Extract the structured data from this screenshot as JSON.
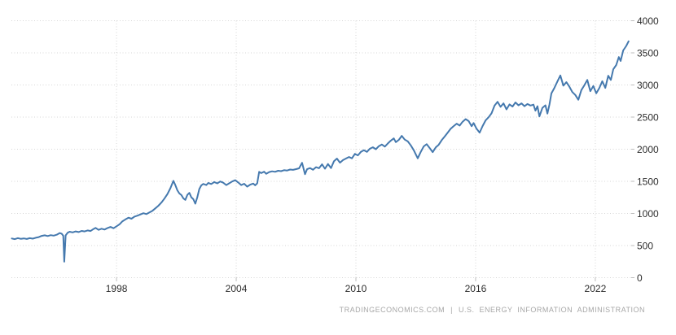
{
  "chart": {
    "footer": {
      "left": "TRADINGECONOMICS.COM",
      "separator": "|",
      "right": "U.S. ENERGY INFORMATION ADMINISTRATION"
    }
  },
  "chart_data": {
    "type": "line",
    "title": "",
    "xlabel": "",
    "ylabel": "",
    "legend": "none",
    "grid": "dotted",
    "xlim": [
      1992.73,
      2023.8
    ],
    "ylim": [
      0,
      4000
    ],
    "xticks": [
      1998,
      2004,
      2010,
      2016,
      2022
    ],
    "yticks": [
      0,
      500,
      1000,
      1500,
      2000,
      2500,
      3000,
      3500,
      4000
    ],
    "colors": {
      "line": "#4579ae",
      "grid": "#d6d6d6",
      "tick": "#bdbdbd",
      "axis_label": "#2d2d2d",
      "footer": "#a7a7a7",
      "background": "#ffffff"
    },
    "series": [
      {
        "color": "#4579ae",
        "points": [
          [
            1992.75,
            610
          ],
          [
            1992.9,
            600
          ],
          [
            1993.05,
            615
          ],
          [
            1993.2,
            605
          ],
          [
            1993.35,
            612
          ],
          [
            1993.5,
            602
          ],
          [
            1993.65,
            615
          ],
          [
            1993.8,
            608
          ],
          [
            1993.95,
            622
          ],
          [
            1994.1,
            632
          ],
          [
            1994.25,
            650
          ],
          [
            1994.4,
            660
          ],
          [
            1994.55,
            648
          ],
          [
            1994.7,
            662
          ],
          [
            1994.85,
            654
          ],
          [
            1995.0,
            668
          ],
          [
            1995.15,
            695
          ],
          [
            1995.25,
            685
          ],
          [
            1995.33,
            652
          ],
          [
            1995.38,
            250
          ],
          [
            1995.45,
            658
          ],
          [
            1995.55,
            700
          ],
          [
            1995.65,
            715
          ],
          [
            1995.8,
            705
          ],
          [
            1995.95,
            720
          ],
          [
            1996.1,
            710
          ],
          [
            1996.25,
            728
          ],
          [
            1996.4,
            720
          ],
          [
            1996.55,
            736
          ],
          [
            1996.7,
            726
          ],
          [
            1996.85,
            758
          ],
          [
            1996.95,
            775
          ],
          [
            1997.1,
            744
          ],
          [
            1997.25,
            762
          ],
          [
            1997.4,
            750
          ],
          [
            1997.55,
            774
          ],
          [
            1997.7,
            790
          ],
          [
            1997.85,
            770
          ],
          [
            1998.0,
            800
          ],
          [
            1998.15,
            832
          ],
          [
            1998.3,
            878
          ],
          [
            1998.45,
            908
          ],
          [
            1998.6,
            934
          ],
          [
            1998.75,
            918
          ],
          [
            1998.9,
            950
          ],
          [
            1999.05,
            966
          ],
          [
            1999.2,
            985
          ],
          [
            1999.35,
            1004
          ],
          [
            1999.5,
            990
          ],
          [
            1999.65,
            1016
          ],
          [
            1999.8,
            1042
          ],
          [
            1999.95,
            1080
          ],
          [
            2000.1,
            1120
          ],
          [
            2000.25,
            1170
          ],
          [
            2000.4,
            1232
          ],
          [
            2000.55,
            1300
          ],
          [
            2000.7,
            1392
          ],
          [
            2000.85,
            1508
          ],
          [
            2000.95,
            1440
          ],
          [
            2001.05,
            1360
          ],
          [
            2001.15,
            1312
          ],
          [
            2001.25,
            1286
          ],
          [
            2001.35,
            1235
          ],
          [
            2001.45,
            1212
          ],
          [
            2001.55,
            1288
          ],
          [
            2001.65,
            1320
          ],
          [
            2001.75,
            1252
          ],
          [
            2001.85,
            1222
          ],
          [
            2001.95,
            1152
          ],
          [
            2002.05,
            1255
          ],
          [
            2002.15,
            1380
          ],
          [
            2002.25,
            1438
          ],
          [
            2002.35,
            1460
          ],
          [
            2002.5,
            1442
          ],
          [
            2002.6,
            1475
          ],
          [
            2002.75,
            1458
          ],
          [
            2002.9,
            1488
          ],
          [
            2003.05,
            1468
          ],
          [
            2003.2,
            1498
          ],
          [
            2003.35,
            1478
          ],
          [
            2003.5,
            1442
          ],
          [
            2003.65,
            1470
          ],
          [
            2003.8,
            1498
          ],
          [
            2003.95,
            1518
          ],
          [
            2004.1,
            1482
          ],
          [
            2004.25,
            1442
          ],
          [
            2004.4,
            1462
          ],
          [
            2004.55,
            1418
          ],
          [
            2004.7,
            1448
          ],
          [
            2004.85,
            1464
          ],
          [
            2004.95,
            1438
          ],
          [
            2005.05,
            1468
          ],
          [
            2005.15,
            1648
          ],
          [
            2005.25,
            1628
          ],
          [
            2005.4,
            1650
          ],
          [
            2005.5,
            1618
          ],
          [
            2005.65,
            1644
          ],
          [
            2005.8,
            1656
          ],
          [
            2005.95,
            1648
          ],
          [
            2006.1,
            1664
          ],
          [
            2006.25,
            1658
          ],
          [
            2006.4,
            1674
          ],
          [
            2006.55,
            1668
          ],
          [
            2006.7,
            1684
          ],
          [
            2006.85,
            1678
          ],
          [
            2007.0,
            1690
          ],
          [
            2007.15,
            1702
          ],
          [
            2007.3,
            1788
          ],
          [
            2007.45,
            1612
          ],
          [
            2007.55,
            1688
          ],
          [
            2007.7,
            1706
          ],
          [
            2007.85,
            1680
          ],
          [
            2008.0,
            1720
          ],
          [
            2008.15,
            1704
          ],
          [
            2008.3,
            1764
          ],
          [
            2008.45,
            1696
          ],
          [
            2008.6,
            1770
          ],
          [
            2008.75,
            1706
          ],
          [
            2008.9,
            1814
          ],
          [
            2009.05,
            1854
          ],
          [
            2009.2,
            1790
          ],
          [
            2009.35,
            1830
          ],
          [
            2009.5,
            1854
          ],
          [
            2009.65,
            1878
          ],
          [
            2009.8,
            1858
          ],
          [
            2009.95,
            1928
          ],
          [
            2010.1,
            1904
          ],
          [
            2010.25,
            1958
          ],
          [
            2010.4,
            1984
          ],
          [
            2010.55,
            1958
          ],
          [
            2010.7,
            2008
          ],
          [
            2010.85,
            2030
          ],
          [
            2011.0,
            2000
          ],
          [
            2011.15,
            2048
          ],
          [
            2011.3,
            2074
          ],
          [
            2011.45,
            2040
          ],
          [
            2011.6,
            2090
          ],
          [
            2011.75,
            2134
          ],
          [
            2011.9,
            2168
          ],
          [
            2012.0,
            2110
          ],
          [
            2012.15,
            2146
          ],
          [
            2012.3,
            2208
          ],
          [
            2012.45,
            2150
          ],
          [
            2012.6,
            2122
          ],
          [
            2012.75,
            2060
          ],
          [
            2012.9,
            1985
          ],
          [
            2013.1,
            1858
          ],
          [
            2013.25,
            1958
          ],
          [
            2013.4,
            2044
          ],
          [
            2013.55,
            2078
          ],
          [
            2013.7,
            2018
          ],
          [
            2013.85,
            1955
          ],
          [
            2014.0,
            2028
          ],
          [
            2014.15,
            2068
          ],
          [
            2014.3,
            2140
          ],
          [
            2014.45,
            2198
          ],
          [
            2014.6,
            2258
          ],
          [
            2014.75,
            2318
          ],
          [
            2014.9,
            2360
          ],
          [
            2015.05,
            2398
          ],
          [
            2015.2,
            2368
          ],
          [
            2015.35,
            2428
          ],
          [
            2015.5,
            2468
          ],
          [
            2015.65,
            2438
          ],
          [
            2015.8,
            2358
          ],
          [
            2015.9,
            2408
          ],
          [
            2016.05,
            2318
          ],
          [
            2016.2,
            2258
          ],
          [
            2016.35,
            2360
          ],
          [
            2016.5,
            2448
          ],
          [
            2016.65,
            2498
          ],
          [
            2016.8,
            2558
          ],
          [
            2016.95,
            2678
          ],
          [
            2017.1,
            2738
          ],
          [
            2017.25,
            2660
          ],
          [
            2017.4,
            2714
          ],
          [
            2017.55,
            2620
          ],
          [
            2017.7,
            2698
          ],
          [
            2017.85,
            2664
          ],
          [
            2018.0,
            2728
          ],
          [
            2018.15,
            2684
          ],
          [
            2018.3,
            2714
          ],
          [
            2018.45,
            2670
          ],
          [
            2018.6,
            2704
          ],
          [
            2018.75,
            2680
          ],
          [
            2018.9,
            2694
          ],
          [
            2019.0,
            2600
          ],
          [
            2019.1,
            2668
          ],
          [
            2019.2,
            2510
          ],
          [
            2019.35,
            2644
          ],
          [
            2019.5,
            2684
          ],
          [
            2019.6,
            2554
          ],
          [
            2019.7,
            2694
          ],
          [
            2019.8,
            2868
          ],
          [
            2019.95,
            2954
          ],
          [
            2020.1,
            3054
          ],
          [
            2020.25,
            3148
          ],
          [
            2020.4,
            2990
          ],
          [
            2020.55,
            3044
          ],
          [
            2020.7,
            2974
          ],
          [
            2020.85,
            2890
          ],
          [
            2021.0,
            2844
          ],
          [
            2021.15,
            2770
          ],
          [
            2021.3,
            2920
          ],
          [
            2021.45,
            2994
          ],
          [
            2021.6,
            3078
          ],
          [
            2021.75,
            2904
          ],
          [
            2021.9,
            2984
          ],
          [
            2022.05,
            2870
          ],
          [
            2022.2,
            2950
          ],
          [
            2022.35,
            3058
          ],
          [
            2022.5,
            2954
          ],
          [
            2022.65,
            3144
          ],
          [
            2022.78,
            3078
          ],
          [
            2022.9,
            3244
          ],
          [
            2023.05,
            3310
          ],
          [
            2023.18,
            3434
          ],
          [
            2023.27,
            3374
          ],
          [
            2023.4,
            3538
          ],
          [
            2023.55,
            3608
          ],
          [
            2023.67,
            3680
          ]
        ]
      }
    ]
  }
}
